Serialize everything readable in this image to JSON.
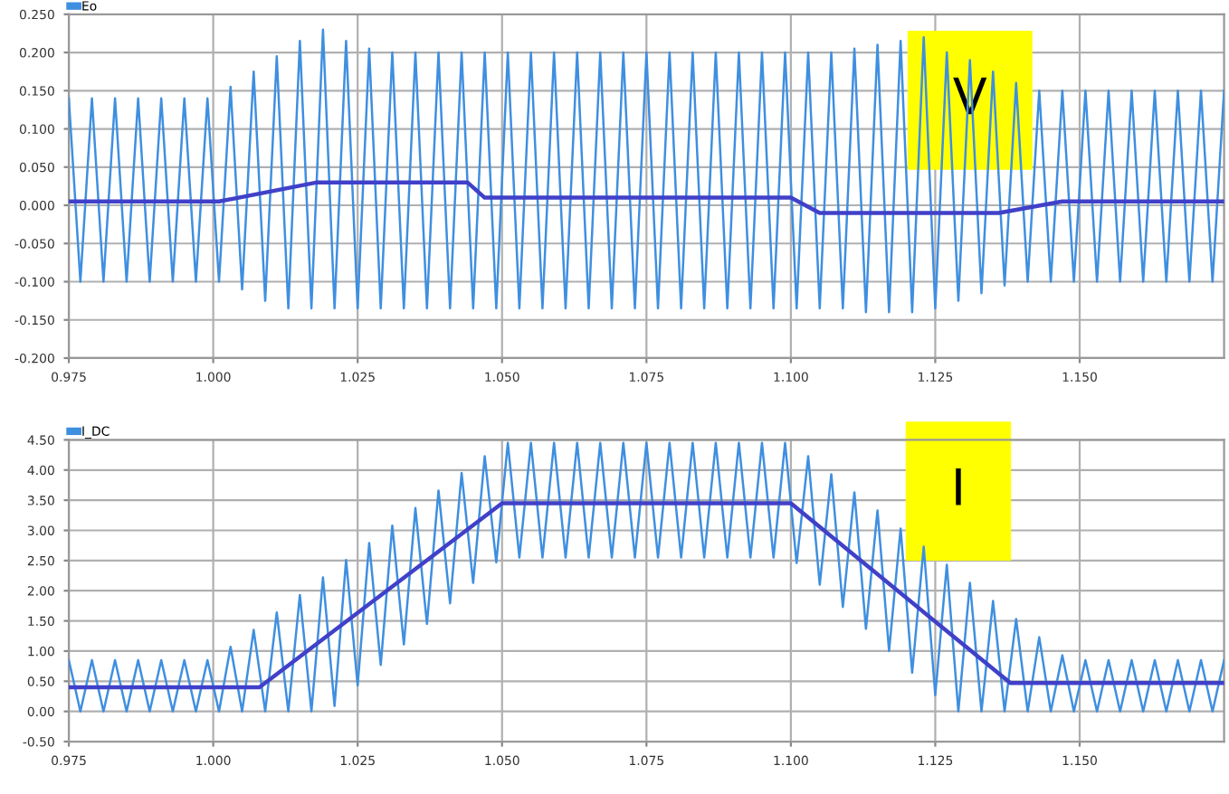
{
  "chart_data": [
    {
      "type": "line",
      "x": [
        0.975,
        0.977,
        0.979,
        0.981,
        0.983,
        0.985,
        0.987,
        0.989,
        0.991,
        0.993,
        0.995,
        0.997,
        0.999,
        1.001,
        1.003,
        1.005,
        1.007,
        1.009,
        1.011,
        1.013,
        1.015,
        1.017,
        1.019,
        1.021,
        1.023,
        1.025,
        1.027,
        1.029,
        1.031,
        1.033,
        1.035,
        1.037,
        1.039,
        1.041,
        1.043,
        1.045,
        1.047,
        1.049,
        1.051,
        1.053,
        1.055,
        1.057,
        1.059,
        1.061,
        1.063,
        1.065,
        1.067,
        1.069,
        1.071,
        1.073,
        1.075,
        1.077,
        1.079,
        1.081,
        1.083,
        1.085,
        1.087,
        1.089,
        1.091,
        1.093,
        1.095,
        1.097,
        1.099,
        1.101,
        1.103,
        1.105,
        1.107,
        1.109,
        1.111,
        1.113,
        1.115,
        1.117,
        1.119,
        1.121,
        1.123,
        1.125,
        1.127,
        1.129,
        1.131,
        1.133,
        1.135,
        1.137,
        1.139,
        1.141,
        1.143,
        1.145,
        1.147,
        1.149,
        1.151,
        1.153,
        1.155,
        1.157,
        1.159,
        1.161,
        1.163,
        1.165,
        1.167,
        1.169,
        1.171,
        1.173,
        1.175
      ],
      "series": [
        {
          "name": "Eo",
          "color": "#3f8fe0",
          "values": [
            0.14,
            -0.1,
            0.14,
            -0.1,
            0.14,
            -0.1,
            0.14,
            -0.1,
            0.14,
            -0.1,
            0.14,
            -0.1,
            0.14,
            -0.1,
            0.155,
            -0.11,
            0.175,
            -0.125,
            0.195,
            -0.135,
            0.215,
            -0.135,
            0.23,
            -0.135,
            0.215,
            -0.135,
            0.205,
            -0.135,
            0.2,
            -0.135,
            0.2,
            -0.135,
            0.2,
            -0.135,
            0.2,
            -0.135,
            0.2,
            -0.135,
            0.2,
            -0.135,
            0.2,
            -0.135,
            0.2,
            -0.135,
            0.2,
            -0.135,
            0.2,
            -0.135,
            0.2,
            -0.135,
            0.2,
            -0.135,
            0.2,
            -0.135,
            0.2,
            -0.135,
            0.2,
            -0.135,
            0.2,
            -0.135,
            0.2,
            -0.135,
            0.2,
            -0.135,
            0.2,
            -0.135,
            0.2,
            -0.135,
            0.205,
            -0.14,
            0.21,
            -0.14,
            0.215,
            -0.14,
            0.22,
            -0.135,
            0.2,
            -0.125,
            0.19,
            -0.115,
            0.175,
            -0.105,
            0.16,
            -0.1,
            0.15,
            -0.1,
            0.15,
            -0.1,
            0.15,
            -0.1,
            0.15,
            -0.1,
            0.15,
            -0.1,
            0.15,
            -0.1,
            0.15,
            -0.1,
            0.15,
            -0.1,
            0.15
          ]
        },
        {
          "color": "#4040c8",
          "x": [
            0.975,
            1.001,
            1.018,
            1.044,
            1.047,
            1.1,
            1.105,
            1.136,
            1.147,
            1.175
          ],
          "values": [
            0.005,
            0.005,
            0.03,
            0.03,
            0.01,
            0.01,
            -0.01,
            -0.01,
            0.005,
            0.005
          ]
        }
      ],
      "xlim": [
        0.975,
        1.175
      ],
      "xticks": [
        {
          "value": 0.975,
          "label": "0.975"
        },
        {
          "value": 1.0,
          "label": "1.000"
        },
        {
          "value": 1.025,
          "label": "1.025"
        },
        {
          "value": 1.05,
          "label": "1.050"
        },
        {
          "value": 1.075,
          "label": "1.075"
        },
        {
          "value": 1.1,
          "label": "1.100"
        },
        {
          "value": 1.125,
          "label": "1.125"
        },
        {
          "value": 1.15,
          "label": "1.150"
        }
      ],
      "ylim": [
        -0.2,
        0.25
      ],
      "yticks": [
        {
          "value": -0.2,
          "label": "-0.200"
        },
        {
          "value": -0.15,
          "label": "-0.150"
        },
        {
          "value": -0.1,
          "label": "-0.100"
        },
        {
          "value": -0.05,
          "label": "-0.050"
        },
        {
          "value": 0.0,
          "label": "0.000"
        },
        {
          "value": 0.05,
          "label": "0.050"
        },
        {
          "value": 0.1,
          "label": "0.100"
        },
        {
          "value": 0.15,
          "label": "0.150"
        },
        {
          "value": 0.2,
          "label": "0.200"
        },
        {
          "value": 0.25,
          "label": "0.250"
        }
      ],
      "grid": true,
      "legend": "top left",
      "annotations": [
        "V"
      ]
    },
    {
      "type": "line",
      "x": [
        0.975,
        0.977,
        0.979,
        0.981,
        0.983,
        0.985,
        0.987,
        0.989,
        0.991,
        0.993,
        0.995,
        0.997,
        0.999,
        1.001,
        1.003,
        1.005,
        1.007,
        1.009,
        1.011,
        1.013,
        1.015,
        1.017,
        1.019,
        1.021,
        1.023,
        1.025,
        1.027,
        1.029,
        1.031,
        1.033,
        1.035,
        1.037,
        1.039,
        1.041,
        1.043,
        1.045,
        1.047,
        1.049,
        1.051,
        1.053,
        1.055,
        1.057,
        1.059,
        1.061,
        1.063,
        1.065,
        1.067,
        1.069,
        1.071,
        1.073,
        1.075,
        1.077,
        1.079,
        1.081,
        1.083,
        1.085,
        1.087,
        1.089,
        1.091,
        1.093,
        1.095,
        1.097,
        1.099,
        1.101,
        1.103,
        1.105,
        1.107,
        1.109,
        1.111,
        1.113,
        1.115,
        1.117,
        1.119,
        1.121,
        1.123,
        1.125,
        1.127,
        1.129,
        1.131,
        1.133,
        1.135,
        1.137,
        1.139,
        1.141,
        1.143,
        1.145,
        1.147,
        1.149,
        1.151,
        1.153,
        1.155,
        1.157,
        1.159,
        1.161,
        1.163,
        1.165,
        1.167,
        1.169,
        1.171,
        1.173,
        1.175
      ],
      "series": [
        {
          "name": "I_DC",
          "color": "#3f8fe0",
          "values": [
            0.85,
            0,
            0.85,
            0,
            0.85,
            0,
            0.85,
            0,
            0.85,
            0,
            0.85,
            0,
            0.85,
            0,
            1.07,
            0,
            1.35,
            0,
            1.64,
            0,
            1.93,
            0,
            2.22,
            0.09,
            2.51,
            0.43,
            2.79,
            0.77,
            3.08,
            1.11,
            3.37,
            1.45,
            3.66,
            1.79,
            3.95,
            2.13,
            4.23,
            2.47,
            4.45,
            2.55,
            4.45,
            2.55,
            4.45,
            2.55,
            4.45,
            2.55,
            4.45,
            2.55,
            4.45,
            2.55,
            4.45,
            2.55,
            4.45,
            2.55,
            4.45,
            2.55,
            4.45,
            2.55,
            4.45,
            2.55,
            4.45,
            2.55,
            4.45,
            2.46,
            4.23,
            2.1,
            3.93,
            1.73,
            3.63,
            1.37,
            3.33,
            1.0,
            3.03,
            0.64,
            2.73,
            0.27,
            2.43,
            0,
            2.13,
            0,
            1.83,
            0,
            1.53,
            0,
            1.23,
            0,
            0.93,
            0,
            0.85,
            0,
            0.85,
            0,
            0.85,
            0,
            0.85,
            0,
            0.85,
            0,
            0.85,
            0,
            0.85
          ]
        },
        {
          "color": "#4040c8",
          "x": [
            0.975,
            1.008,
            1.05,
            1.1,
            1.138,
            1.175
          ],
          "values": [
            0.4,
            0.4,
            3.45,
            3.45,
            0.47,
            0.47
          ]
        }
      ],
      "xlim": [
        0.975,
        1.175
      ],
      "xticks": [
        {
          "value": 0.975,
          "label": "0.975"
        },
        {
          "value": 1.0,
          "label": "1.000"
        },
        {
          "value": 1.025,
          "label": "1.025"
        },
        {
          "value": 1.05,
          "label": "1.050"
        },
        {
          "value": 1.075,
          "label": "1.075"
        },
        {
          "value": 1.1,
          "label": "1.100"
        },
        {
          "value": 1.125,
          "label": "1.125"
        },
        {
          "value": 1.15,
          "label": "1.150"
        }
      ],
      "ylim": [
        -0.5,
        4.5
      ],
      "yticks": [
        {
          "value": -0.5,
          "label": "-0.50"
        },
        {
          "value": 0.0,
          "label": "0.00"
        },
        {
          "value": 0.5,
          "label": "0.50"
        },
        {
          "value": 1.0,
          "label": "1.00"
        },
        {
          "value": 1.5,
          "label": "1.50"
        },
        {
          "value": 2.0,
          "label": "2.00"
        },
        {
          "value": 2.5,
          "label": "2.50"
        },
        {
          "value": 3.0,
          "label": "3.00"
        },
        {
          "value": 3.5,
          "label": "3.50"
        },
        {
          "value": 4.0,
          "label": "4.00"
        },
        {
          "value": 4.5,
          "label": "4.50"
        }
      ],
      "grid": true,
      "legend": "top left",
      "annotations": [
        "I"
      ]
    }
  ]
}
